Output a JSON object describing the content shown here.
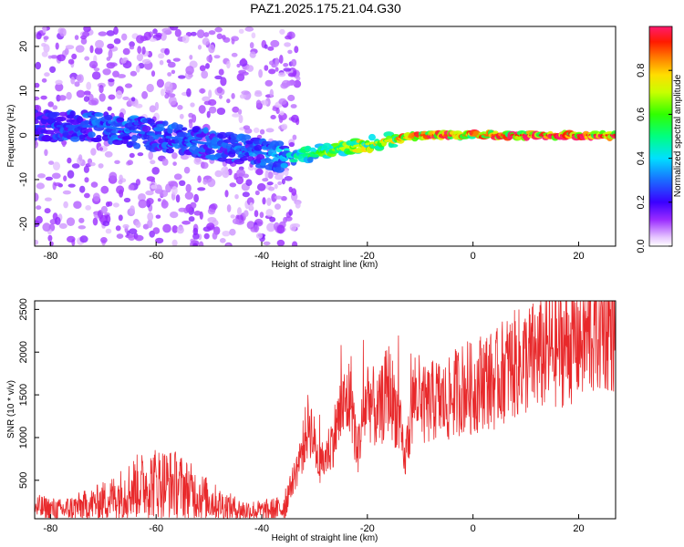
{
  "title": "PAZ1.2025.175.21.04.G30",
  "colors": {
    "snr_line": "#e8292b",
    "axis": "#000000",
    "colormap": [
      "#e6c6ff",
      "#9b2cff",
      "#5a00ff",
      "#1a3cff",
      "#00d0ff",
      "#00ff80",
      "#6cff00",
      "#ffee00",
      "#ff6a00",
      "#ff0000",
      "#ff1a6e"
    ]
  },
  "chart_data": [
    {
      "type": "heatmap",
      "xlabel": "Height of straight line (km)",
      "ylabel": "Frequency (Hz)",
      "xlim": [
        -83,
        27
      ],
      "ylim": [
        -25,
        24.5
      ],
      "xticks": [
        -80,
        -60,
        -40,
        -20,
        0,
        20
      ],
      "yticks": [
        20,
        10,
        0,
        -10,
        -20
      ],
      "colorbar": {
        "label": "Normalized spectral amplitude",
        "range": [
          0,
          1
        ],
        "ticks": [
          "0.0",
          "0.2",
          "0.4",
          "0.6",
          "0.8"
        ]
      },
      "ridge": {
        "description_points_height_km": [
          -82,
          -70,
          -60,
          -50,
          -40,
          -35,
          -30,
          -25,
          -20,
          -15,
          -10,
          -5,
          0,
          10,
          20,
          27
        ],
        "frequency_hz": [
          2,
          2,
          0,
          -2,
          -4,
          -5,
          -4,
          -3,
          -2,
          -1,
          0,
          0,
          0,
          0,
          0,
          0
        ],
        "amplitude": [
          0.25,
          0.3,
          0.3,
          0.3,
          0.3,
          0.4,
          0.55,
          0.7,
          0.7,
          0.75,
          0.9,
          0.9,
          0.85,
          0.95,
          0.95,
          0.95
        ]
      }
    },
    {
      "type": "line",
      "xlabel": "Height of straight line (km)",
      "ylabel": "SNR (10 * v/v)",
      "xlim": [
        -83,
        27
      ],
      "ylim": [
        50,
        2600
      ],
      "xticks": [
        -80,
        -60,
        -40,
        -20,
        0,
        20
      ],
      "yticks": [
        500,
        1000,
        1500,
        2000,
        2500
      ],
      "series": [
        {
          "x": [
            -83,
            -78,
            -72,
            -68,
            -64,
            -60,
            -56,
            -52,
            -48,
            -44,
            -40,
            -36,
            -33,
            -31,
            -29,
            -27,
            -25,
            -23,
            -22,
            -20,
            -18,
            -16,
            -14,
            -13,
            -11,
            -9,
            -7,
            -5,
            -3,
            -1,
            0,
            2,
            4,
            6,
            8,
            10,
            12,
            14,
            16,
            18,
            20,
            22,
            24,
            26,
            27
          ],
          "y": [
            180,
            150,
            220,
            300,
            420,
            480,
            450,
            330,
            220,
            150,
            140,
            170,
            700,
            1200,
            650,
            900,
            1300,
            1500,
            800,
            1500,
            1250,
            1600,
            1200,
            700,
            1550,
            1350,
            1450,
            1400,
            1550,
            1600,
            1550,
            1700,
            1650,
            1800,
            1850,
            1900,
            1950,
            2000,
            2050,
            2100,
            2150,
            2200,
            2300,
            2350,
            2250
          ]
        }
      ]
    }
  ]
}
